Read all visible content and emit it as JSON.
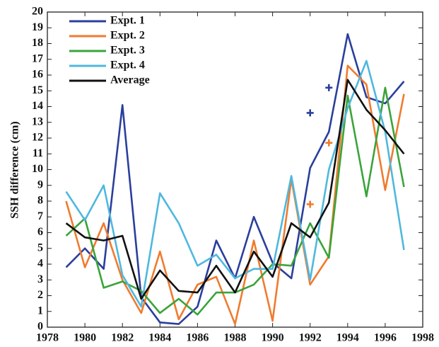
{
  "chart_data": {
    "type": "line",
    "y_label": "SSH difference (cm)",
    "x": [
      1979,
      1980,
      1981,
      1982,
      1983,
      1984,
      1985,
      1986,
      1987,
      1988,
      1989,
      1990,
      1991,
      1992,
      1993,
      1994,
      1995,
      1996,
      1997
    ],
    "series": [
      {
        "name": "Expt. 1",
        "color": "#2a3f9c",
        "values": [
          3.8,
          5.0,
          3.7,
          14.1,
          1.9,
          0.3,
          0.2,
          1.3,
          5.5,
          3.1,
          7.0,
          4.1,
          3.1,
          10.1,
          12.4,
          18.6,
          14.6,
          14.2,
          15.6
        ]
      },
      {
        "name": "Expt. 2",
        "color": "#ef7b2e",
        "values": [
          8.0,
          3.8,
          6.6,
          3.0,
          0.9,
          4.8,
          0.5,
          2.7,
          3.2,
          0.2,
          5.5,
          0.4,
          9.4,
          2.7,
          4.5,
          16.6,
          15.4,
          8.7,
          14.8
        ]
      },
      {
        "name": "Expt. 3",
        "color": "#3aa43a",
        "values": [
          5.8,
          6.9,
          2.5,
          2.9,
          2.3,
          0.9,
          1.8,
          0.8,
          2.2,
          2.2,
          2.7,
          4.0,
          3.9,
          6.6,
          4.4,
          14.7,
          8.3,
          15.2,
          8.9
        ]
      },
      {
        "name": "Expt. 4",
        "color": "#4fb8de",
        "values": [
          8.6,
          6.8,
          9.0,
          3.3,
          1.3,
          8.5,
          6.6,
          3.9,
          4.6,
          3.1,
          3.7,
          3.7,
          9.6,
          3.0,
          10.0,
          13.9,
          16.9,
          12.4,
          4.9
        ]
      },
      {
        "name": "Average",
        "color": "#111111",
        "values": [
          6.6,
          5.7,
          5.5,
          5.8,
          1.8,
          3.6,
          2.3,
          2.2,
          3.9,
          2.2,
          4.8,
          3.2,
          6.6,
          5.7,
          7.9,
          15.7,
          13.8,
          12.5,
          11.0
        ]
      }
    ],
    "plus_markers": [
      {
        "color": "#2a3f9c",
        "x": [
          1992,
          1993
        ],
        "y": [
          13.6,
          15.2
        ]
      },
      {
        "color": "#ef7b2e",
        "x": [
          1992,
          1993
        ],
        "y": [
          7.8,
          11.7
        ]
      }
    ],
    "xlim": [
      1978,
      1998
    ],
    "xticks": [
      1978,
      1980,
      1982,
      1984,
      1986,
      1988,
      1990,
      1992,
      1994,
      1996,
      1998
    ],
    "ylim": [
      0,
      20
    ],
    "yticks": [
      0,
      1,
      2,
      3,
      4,
      5,
      6,
      7,
      8,
      9,
      10,
      11,
      12,
      13,
      14,
      15,
      16,
      17,
      18,
      19,
      20
    ],
    "legend": "upper-left"
  }
}
